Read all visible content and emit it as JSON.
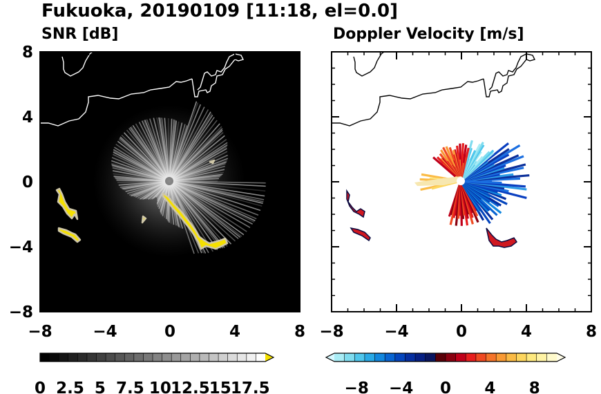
{
  "title": "Fukuoka, 20190109 [11:18, el=0.0]",
  "chart_data": [
    {
      "type": "heatmap",
      "title": "SNR [dB]",
      "xlim": [
        -8,
        8
      ],
      "ylim": [
        -8,
        8
      ],
      "x_ticks": [
        -8,
        -4,
        0,
        4,
        8
      ],
      "y_ticks": [
        -8,
        -4,
        0,
        4,
        8
      ],
      "colorbar": {
        "min": 0,
        "max": 18.75,
        "extend": "max",
        "tick_values": [
          0,
          2.5,
          5,
          7.5,
          10,
          12.5,
          15,
          17.5
        ],
        "tick_labels": [
          "0",
          "2.5",
          "5",
          "7.5",
          "10",
          "12.5",
          "15",
          "17.5"
        ],
        "colors": [
          "#000000",
          "#0a0a0a",
          "#151515",
          "#202020",
          "#2b2b2b",
          "#363636",
          "#414141",
          "#4c4c4c",
          "#575757",
          "#626262",
          "#6d6d6d",
          "#787878",
          "#838383",
          "#8e8e8e",
          "#999999",
          "#a4a4a4",
          "#afafaf",
          "#bababa",
          "#c5c5c5",
          "#d0d0d0",
          "#dbdbdb",
          "#e6e6e6",
          "#f1f1f1",
          "#ffffff"
        ],
        "over_color": "#f5e000"
      },
      "echo_color": "#f5e000"
    },
    {
      "type": "heatmap",
      "title": "Doppler Velocity [m/s]",
      "xlim": [
        -8,
        8
      ],
      "ylim": [
        -8,
        8
      ],
      "x_ticks": [
        -8,
        -4,
        0,
        4,
        8
      ],
      "y_ticks": [
        -8,
        -4,
        0,
        4,
        8
      ],
      "colorbar": {
        "min": -10,
        "max": 10,
        "extend": "both",
        "tick_values": [
          -8,
          -4,
          0,
          4,
          8
        ],
        "tick_labels": [
          "−8",
          "−4",
          "0",
          "4",
          "8"
        ],
        "colors": [
          "#a8ecf5",
          "#7fdcef",
          "#4fc6ec",
          "#29a9e6",
          "#1287de",
          "#0864d2",
          "#0445bd",
          "#052ea0",
          "#061f83",
          "#0a1660",
          "#5a0008",
          "#8a0010",
          "#c0001a",
          "#e81e1e",
          "#f04a22",
          "#f5742a",
          "#f99a34",
          "#fbbb45",
          "#fdd65e",
          "#fee97f",
          "#fff3a4",
          "#fffacb"
        ],
        "under_color": "#d6f8ff",
        "over_color": "#fffde8"
      }
    }
  ]
}
